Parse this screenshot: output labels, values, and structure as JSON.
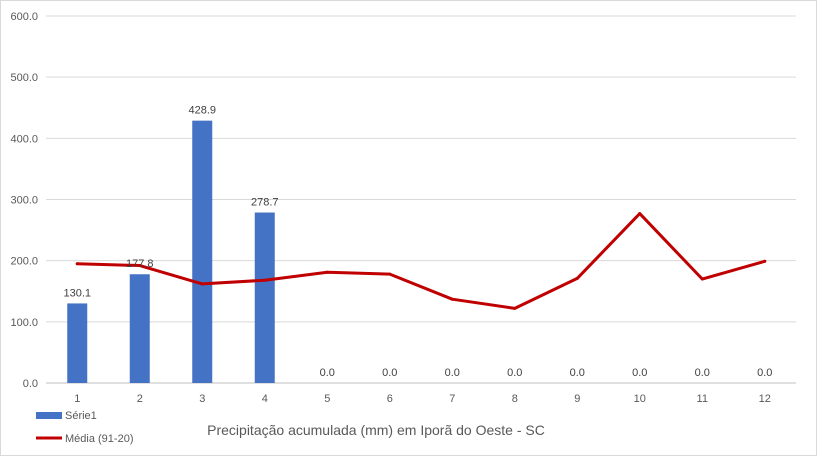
{
  "chart_data": {
    "type": "bar",
    "title": "",
    "xlabel": "Precipitação acumulada (mm)  em Iporã do Oeste - SC",
    "ylabel": "",
    "ylim": [
      0,
      600
    ],
    "yticks": [
      "0.0",
      "100.0",
      "200.0",
      "300.0",
      "400.0",
      "500.0",
      "600.0"
    ],
    "categories": [
      "1",
      "2",
      "3",
      "4",
      "5",
      "6",
      "7",
      "8",
      "9",
      "10",
      "11",
      "12"
    ],
    "grid": true,
    "legend_position": "bottom-left",
    "series": [
      {
        "name": "Série1",
        "type": "bar",
        "color": "#4472c4",
        "values": [
          130.1,
          177.8,
          428.9,
          278.7,
          0,
          0,
          0,
          0,
          0,
          0,
          0,
          0
        ],
        "labels": [
          "130.1",
          "177.8",
          "428.9",
          "278.7",
          "0.0",
          "0.0",
          "0.0",
          "0.0",
          "0.0",
          "0.0",
          "0.0",
          "0.0"
        ]
      },
      {
        "name": "Média (91-20)",
        "type": "line",
        "color": "#c00000",
        "values": [
          195,
          192,
          162,
          168,
          181,
          178,
          137,
          122,
          171,
          277,
          170,
          199
        ]
      }
    ]
  }
}
